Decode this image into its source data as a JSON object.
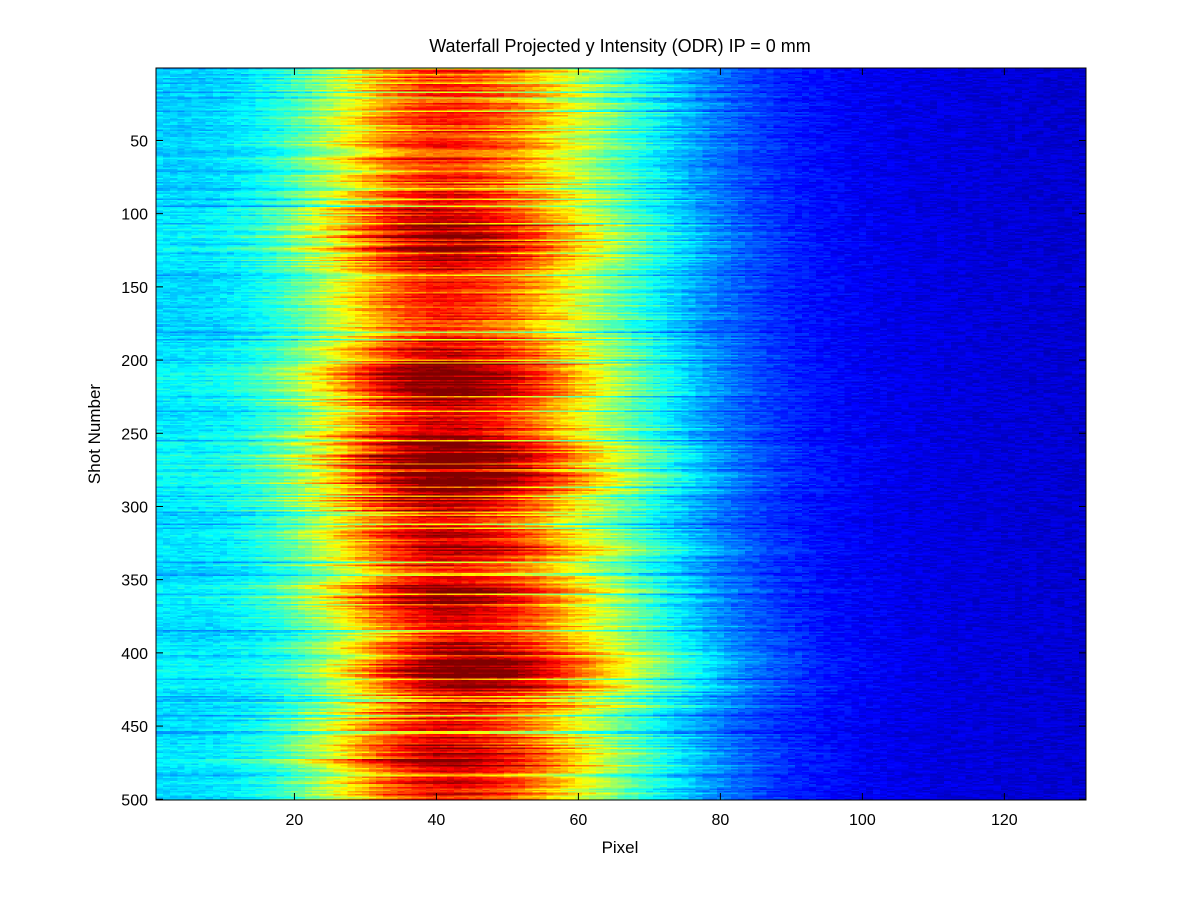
{
  "chart_data": {
    "type": "heatmap",
    "title": "Waterfall Projected y Intensity (ODR) IP = 0 mm",
    "xlabel": "Pixel",
    "ylabel": "Shot Number",
    "xlim": [
      1,
      131
    ],
    "ylim": [
      1,
      500
    ],
    "y_reversed": true,
    "colormap": "jet",
    "grid": false,
    "xticks": [
      20,
      40,
      60,
      80,
      100,
      120
    ],
    "yticks": [
      50,
      100,
      150,
      200,
      250,
      300,
      350,
      400,
      450,
      500
    ],
    "profile_peak_pixel": 42,
    "high_intensity_shot_bands": [
      {
        "shots": [
          100,
          135
        ],
        "peak": 0.92
      },
      {
        "shots": [
          195,
          230
        ],
        "peak": 0.92
      },
      {
        "shots": [
          245,
          300
        ],
        "peak": 0.98
      },
      {
        "shots": [
          320,
          335
        ],
        "peak": 0.85
      },
      {
        "shots": [
          350,
          370
        ],
        "peak": 0.88
      },
      {
        "shots": [
          395,
          430
        ],
        "peak": 0.95
      },
      {
        "shots": [
          455,
          495
        ],
        "peak": 0.85
      }
    ]
  }
}
